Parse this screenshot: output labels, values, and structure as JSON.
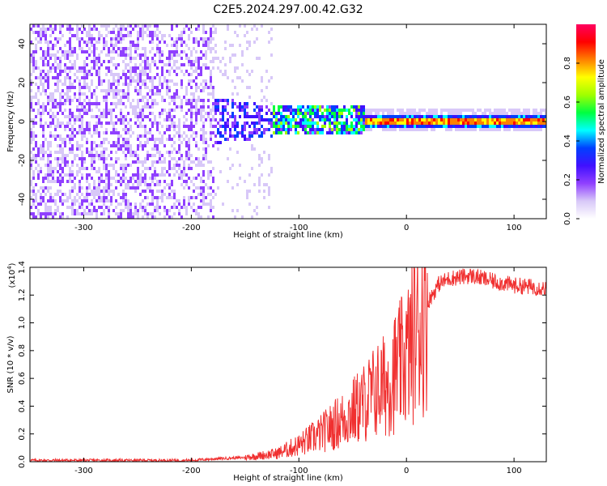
{
  "figure": {
    "title": "C2E5.2024.297.00.42.G32"
  },
  "colors": {
    "snr_line": "#f03030",
    "axis": "#000000",
    "colorbar_stops": [
      "#ffffff",
      "#d8c8f8",
      "#9040ff",
      "#4010ff",
      "#0040ff",
      "#00ffff",
      "#00ff40",
      "#a0ff00",
      "#ffff00",
      "#ff8000",
      "#ff0000",
      "#ff0060"
    ]
  },
  "chart_data": [
    {
      "type": "heatmap",
      "title": "C2E5.2024.297.00.42.G32",
      "xlabel": "Height of straight line (km)",
      "ylabel": "Frequency (Hz)",
      "xlim": [
        -350,
        130
      ],
      "ylim": [
        -50,
        50
      ],
      "xticks": [
        -300,
        -200,
        -100,
        0,
        100
      ],
      "yticks": [
        -40,
        -20,
        0,
        20,
        40
      ],
      "colorbar": {
        "label": "Normalized spectral amplitude",
        "range": [
          0.0,
          1.0
        ],
        "ticks": [
          "0.0",
          "0.2",
          "0.4",
          "0.6",
          "0.8"
        ]
      },
      "description_of_signal": [
        {
          "x": [
            -350,
            -180
          ],
          "freq_spread": [
            -50,
            50
          ],
          "amplitude": 0.15
        },
        {
          "x": [
            -180,
            -120
          ],
          "freq_spread": [
            -10,
            12
          ],
          "amplitude": 0.35
        },
        {
          "x": [
            -120,
            -40
          ],
          "freq_spread": [
            -6,
            8
          ],
          "amplitude": 0.5
        },
        {
          "x": [
            -40,
            130
          ],
          "freq_center": 1,
          "freq_spread": [
            -2,
            3
          ],
          "amplitude": 0.9
        }
      ]
    },
    {
      "type": "line",
      "xlabel": "Height of straight line (km)",
      "ylabel": "SNR (10 * v/v)",
      "y_multiplier": "(x10",
      "y_multiplier_exp": "4",
      "y_multiplier_close": ")",
      "xlim": [
        -350,
        130
      ],
      "ylim": [
        0.0,
        1.4
      ],
      "xticks": [
        -300,
        -200,
        -100,
        0,
        100
      ],
      "yticks": [
        "0.0",
        "0.2",
        "0.4",
        "0.6",
        "0.8",
        "1.0",
        "1.2",
        "1.4"
      ],
      "ytick_values": [
        0.0,
        0.2,
        0.4,
        0.6,
        0.8,
        1.0,
        1.2,
        1.4
      ],
      "series": [
        {
          "x": [
            -350,
            -300,
            -250,
            -200,
            -180,
            -150,
            -120,
            -100,
            -80,
            -60,
            -40,
            -30,
            -20,
            -10,
            0,
            10,
            20,
            30,
            40,
            60,
            80,
            100,
            130
          ],
          "values": [
            0.01,
            0.01,
            0.01,
            0.01,
            0.02,
            0.03,
            0.06,
            0.12,
            0.2,
            0.3,
            0.42,
            0.5,
            0.55,
            0.65,
            0.75,
            0.95,
            1.15,
            1.28,
            1.32,
            1.34,
            1.3,
            1.27,
            1.25
          ]
        }
      ]
    }
  ]
}
